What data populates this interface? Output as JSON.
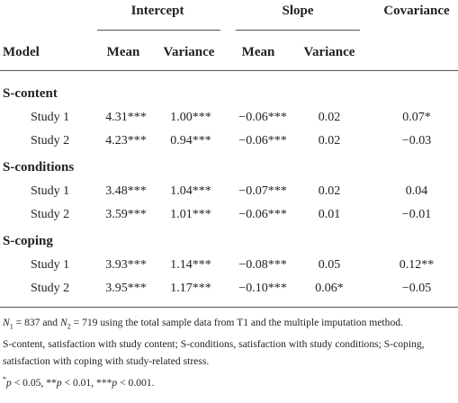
{
  "header": {
    "groups": [
      "Intercept",
      "Slope",
      "Covariance"
    ],
    "columns": [
      "Model",
      "Mean",
      "Variance",
      "Mean",
      "Variance"
    ]
  },
  "sections": [
    {
      "label": "S-content",
      "rows": [
        [
          "Study 1",
          "4.31***",
          "1.00***",
          "−0.06***",
          "0.02",
          "0.07*"
        ],
        [
          "Study 2",
          "4.23***",
          "0.94***",
          "−0.06***",
          "0.02",
          "−0.03"
        ]
      ]
    },
    {
      "label": "S-conditions",
      "rows": [
        [
          "Study 1",
          "3.48***",
          "1.04***",
          "−0.07***",
          "0.02",
          "0.04"
        ],
        [
          "Study 2",
          "3.59***",
          "1.01***",
          "−0.06***",
          "0.01",
          "−0.01"
        ]
      ]
    },
    {
      "label": "S-coping",
      "rows": [
        [
          "Study 1",
          "3.93***",
          "1.14***",
          "−0.08***",
          "0.05",
          "0.12**"
        ],
        [
          "Study 2",
          "3.95***",
          "1.17***",
          "−0.10***",
          "0.06*",
          "−0.05"
        ]
      ]
    }
  ],
  "notes": [
    [
      "N",
      "1",
      " = 837 and ",
      "N",
      "2",
      " = 719 using the total sample data from T1 and the multiple imputation method."
    ],
    "S-content, satisfaction with study content; S-conditions, satisfaction with study conditions; S-coping, satisfaction with coping with study-related stress.",
    [
      "*",
      "p",
      " < 0.05, **",
      "p",
      " < 0.01, ***",
      "p",
      " < 0.001."
    ]
  ]
}
